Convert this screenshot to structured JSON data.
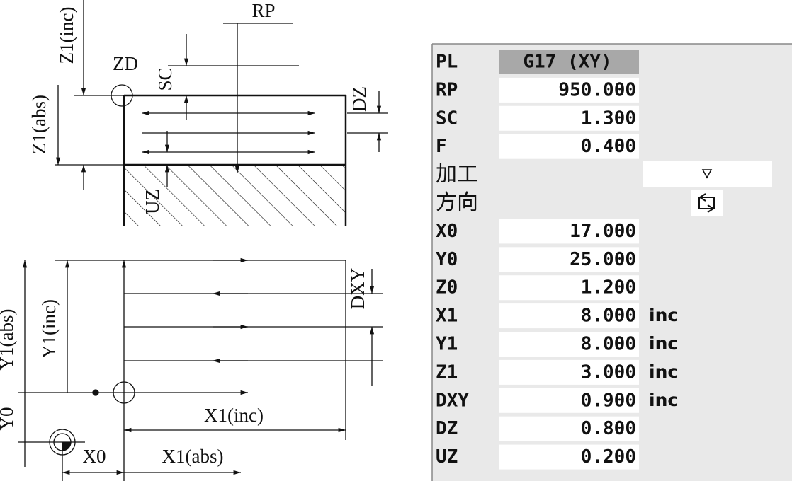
{
  "diagram": {
    "top_labels": {
      "rp": "RP",
      "zd": "ZD",
      "sc": "SC",
      "z1_inc": "Z1(inc)",
      "z1_abs": "Z1(abs)",
      "dz": "DZ",
      "uz": "UZ"
    },
    "bottom_labels": {
      "dxy": "DXY",
      "y1_inc": "Y1(inc)",
      "y1_abs": "Y1(abs)",
      "y0": "Y0",
      "x1_inc": "X1(inc)",
      "x0": "X0",
      "x1_abs": "X1(abs)"
    }
  },
  "panel": {
    "rows": [
      {
        "label": "PL",
        "value": "G17 (XY)"
      },
      {
        "label": "RP",
        "value": "950.000"
      },
      {
        "label": "SC",
        "value": "1.300"
      },
      {
        "label": "F",
        "value": "0.400"
      },
      {
        "label": "加工"
      },
      {
        "label": "方向"
      },
      {
        "label": "X0",
        "value": "17.000"
      },
      {
        "label": "Y0",
        "value": "25.000"
      },
      {
        "label": "Z0",
        "value": "1.200"
      },
      {
        "label": "X1",
        "value": "8.000",
        "unit": "inc"
      },
      {
        "label": "Y1",
        "value": "8.000",
        "unit": "inc"
      },
      {
        "label": "Z1",
        "value": "3.000",
        "unit": "inc"
      },
      {
        "label": "DXY",
        "value": "0.900",
        "unit": "inc"
      },
      {
        "label": "DZ",
        "value": "0.800"
      },
      {
        "label": "UZ",
        "value": "0.200"
      }
    ]
  }
}
